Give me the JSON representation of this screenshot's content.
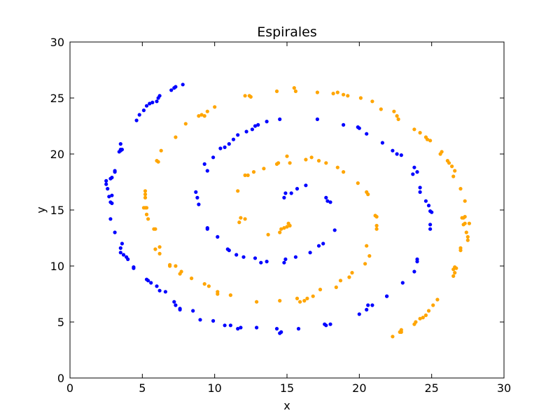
{
  "chart_data": {
    "type": "scatter",
    "title": "Espirales",
    "xlabel": "x",
    "ylabel": "y",
    "xlim": [
      0,
      30
    ],
    "ylim": [
      0,
      30
    ],
    "xticks": [
      0,
      5,
      10,
      15,
      20,
      25,
      30
    ],
    "yticks": [
      0,
      5,
      10,
      15,
      20,
      25,
      30
    ],
    "grid": false,
    "legend": "none",
    "series": [
      {
        "color": "#0000ff",
        "points": [
          [
            14.8,
            16.1
          ],
          [
            14.9,
            16.5
          ],
          [
            15.3,
            16.5
          ],
          [
            15.7,
            16.9
          ],
          [
            16.3,
            17.2
          ],
          [
            17.7,
            16.1
          ],
          [
            17.8,
            15.8
          ],
          [
            18.0,
            15.7
          ],
          [
            18.3,
            13.2
          ],
          [
            17.5,
            12.0
          ],
          [
            17.2,
            11.8
          ],
          [
            16.6,
            11.2
          ],
          [
            15.6,
            10.8
          ],
          [
            14.9,
            10.6
          ],
          [
            14.8,
            10.3
          ],
          [
            13.6,
            10.4
          ],
          [
            13.2,
            10.3
          ],
          [
            12.8,
            10.7
          ],
          [
            12.0,
            10.8
          ],
          [
            11.5,
            11.0
          ],
          [
            11.0,
            11.4
          ],
          [
            10.9,
            11.5
          ],
          [
            10.2,
            12.6
          ],
          [
            9.5,
            13.4
          ],
          [
            9.5,
            13.3
          ],
          [
            8.9,
            15.5
          ],
          [
            8.8,
            16.1
          ],
          [
            8.7,
            16.6
          ],
          [
            9.5,
            18.5
          ],
          [
            9.3,
            19.1
          ],
          [
            9.9,
            19.7
          ],
          [
            10.4,
            20.5
          ],
          [
            10.7,
            20.6
          ],
          [
            11.0,
            20.9
          ],
          [
            11.3,
            21.3
          ],
          [
            11.6,
            21.7
          ],
          [
            12.2,
            22.0
          ],
          [
            12.6,
            22.2
          ],
          [
            12.8,
            22.5
          ],
          [
            13.0,
            22.6
          ],
          [
            13.6,
            22.9
          ],
          [
            14.5,
            23.1
          ],
          [
            17.1,
            23.1
          ],
          [
            18.9,
            22.6
          ],
          [
            19.9,
            22.4
          ],
          [
            20.0,
            22.3
          ],
          [
            20.5,
            21.8
          ],
          [
            21.6,
            21.0
          ],
          [
            22.3,
            20.3
          ],
          [
            22.6,
            20.0
          ],
          [
            22.9,
            19.9
          ],
          [
            23.8,
            18.8
          ],
          [
            23.7,
            18.2
          ],
          [
            24.0,
            18.4
          ],
          [
            24.2,
            17.0
          ],
          [
            24.2,
            16.6
          ],
          [
            24.6,
            15.8
          ],
          [
            24.8,
            15.4
          ],
          [
            24.9,
            14.9
          ],
          [
            25.0,
            14.8
          ],
          [
            24.9,
            13.7
          ],
          [
            24.9,
            13.3
          ],
          [
            24.0,
            10.6
          ],
          [
            24.0,
            10.4
          ],
          [
            23.8,
            9.5
          ],
          [
            23.0,
            8.5
          ],
          [
            21.9,
            7.3
          ],
          [
            21.9,
            7.3
          ],
          [
            20.9,
            6.5
          ],
          [
            20.6,
            6.5
          ],
          [
            20.5,
            6.1
          ],
          [
            20.0,
            5.7
          ],
          [
            18.0,
            4.8
          ],
          [
            17.7,
            4.7
          ],
          [
            17.6,
            4.8
          ],
          [
            15.8,
            4.4
          ],
          [
            14.6,
            4.1
          ],
          [
            14.5,
            4.0
          ],
          [
            14.3,
            4.4
          ],
          [
            12.9,
            4.5
          ],
          [
            11.8,
            4.5
          ],
          [
            11.6,
            4.4
          ],
          [
            11.1,
            4.7
          ],
          [
            10.7,
            4.7
          ],
          [
            9.9,
            5.1
          ],
          [
            9.0,
            5.2
          ],
          [
            8.5,
            6.0
          ],
          [
            7.6,
            6.1
          ],
          [
            7.6,
            6.2
          ],
          [
            7.3,
            6.5
          ],
          [
            7.2,
            6.8
          ],
          [
            6.6,
            7.7
          ],
          [
            6.2,
            7.8
          ],
          [
            6.0,
            8.2
          ],
          [
            5.6,
            8.5
          ],
          [
            5.4,
            8.7
          ],
          [
            5.3,
            8.8
          ],
          [
            4.4,
            9.8
          ],
          [
            4.4,
            9.9
          ],
          [
            4.0,
            10.6
          ],
          [
            3.9,
            10.8
          ],
          [
            3.7,
            11.0
          ],
          [
            3.5,
            11.2
          ],
          [
            3.5,
            11.6
          ],
          [
            3.6,
            12.0
          ],
          [
            3.1,
            13.0
          ],
          [
            2.8,
            14.2
          ],
          [
            2.9,
            15.6
          ],
          [
            2.8,
            15.7
          ],
          [
            2.7,
            16.2
          ],
          [
            2.9,
            16.3
          ],
          [
            2.6,
            16.9
          ],
          [
            2.5,
            17.3
          ],
          [
            2.5,
            17.6
          ],
          [
            2.8,
            17.8
          ],
          [
            2.9,
            17.9
          ],
          [
            3.1,
            18.4
          ],
          [
            3.1,
            18.5
          ],
          [
            3.4,
            20.2
          ],
          [
            3.5,
            20.4
          ],
          [
            3.5,
            20.3
          ],
          [
            3.6,
            20.4
          ],
          [
            3.5,
            20.9
          ],
          [
            4.6,
            23.0
          ],
          [
            4.8,
            23.5
          ],
          [
            5.1,
            23.9
          ],
          [
            5.3,
            24.3
          ],
          [
            5.5,
            24.5
          ],
          [
            5.7,
            24.6
          ],
          [
            6.0,
            24.7
          ],
          [
            6.1,
            25.0
          ],
          [
            6.2,
            25.2
          ],
          [
            7.0,
            25.7
          ],
          [
            7.2,
            25.9
          ],
          [
            7.3,
            26.0
          ],
          [
            7.8,
            26.2
          ]
        ]
      },
      {
        "color": "#ffa500",
        "points": [
          [
            14.6,
            13.3
          ],
          [
            14.5,
            13.0
          ],
          [
            14.8,
            13.4
          ],
          [
            15.0,
            13.5
          ],
          [
            15.1,
            13.8
          ],
          [
            15.2,
            13.6
          ],
          [
            13.7,
            12.8
          ],
          [
            11.8,
            14.3
          ],
          [
            11.7,
            13.9
          ],
          [
            12.1,
            14.2
          ],
          [
            11.6,
            16.7
          ],
          [
            12.1,
            18.1
          ],
          [
            12.3,
            18.1
          ],
          [
            12.7,
            18.4
          ],
          [
            13.4,
            18.7
          ],
          [
            14.3,
            19.1
          ],
          [
            14.4,
            19.2
          ],
          [
            15.2,
            19.2
          ],
          [
            15.0,
            19.8
          ],
          [
            16.3,
            19.5
          ],
          [
            16.7,
            19.7
          ],
          [
            17.2,
            19.4
          ],
          [
            17.7,
            19.2
          ],
          [
            18.5,
            18.8
          ],
          [
            18.9,
            18.4
          ],
          [
            19.9,
            17.4
          ],
          [
            20.5,
            16.6
          ],
          [
            20.6,
            16.4
          ],
          [
            21.1,
            14.5
          ],
          [
            21.2,
            14.4
          ],
          [
            21.2,
            13.6
          ],
          [
            21.2,
            13.3
          ],
          [
            20.5,
            11.8
          ],
          [
            20.7,
            10.9
          ],
          [
            20.4,
            10.2
          ],
          [
            19.5,
            9.4
          ],
          [
            19.3,
            9.0
          ],
          [
            18.7,
            8.7
          ],
          [
            18.4,
            8.1
          ],
          [
            17.3,
            7.9
          ],
          [
            16.8,
            7.3
          ],
          [
            16.4,
            7.1
          ],
          [
            16.2,
            6.9
          ],
          [
            15.9,
            6.8
          ],
          [
            15.7,
            7.1
          ],
          [
            14.5,
            6.9
          ],
          [
            12.9,
            6.8
          ],
          [
            11.1,
            7.4
          ],
          [
            10.2,
            7.5
          ],
          [
            10.2,
            7.7
          ],
          [
            9.6,
            8.2
          ],
          [
            9.3,
            8.4
          ],
          [
            8.4,
            8.9
          ],
          [
            7.6,
            9.3
          ],
          [
            7.7,
            9.5
          ],
          [
            7.3,
            10.0
          ],
          [
            6.9,
            10.1
          ],
          [
            6.9,
            10.0
          ],
          [
            6.2,
            11.1
          ],
          [
            6.2,
            11.7
          ],
          [
            5.9,
            11.5
          ],
          [
            5.8,
            13.3
          ],
          [
            5.9,
            13.3
          ],
          [
            5.4,
            14.2
          ],
          [
            5.3,
            14.6
          ],
          [
            5.2,
            15.2
          ],
          [
            5.3,
            15.2
          ],
          [
            5.1,
            15.2
          ],
          [
            5.2,
            16.1
          ],
          [
            5.2,
            16.4
          ],
          [
            5.2,
            16.7
          ],
          [
            6.1,
            19.3
          ],
          [
            6.0,
            19.4
          ],
          [
            6.3,
            20.3
          ],
          [
            7.3,
            21.5
          ],
          [
            8.0,
            22.7
          ],
          [
            8.9,
            23.4
          ],
          [
            9.1,
            23.5
          ],
          [
            9.3,
            23.4
          ],
          [
            9.5,
            23.8
          ],
          [
            10.0,
            24.2
          ],
          [
            12.1,
            25.2
          ],
          [
            12.4,
            25.2
          ],
          [
            12.5,
            25.1
          ],
          [
            14.3,
            25.6
          ],
          [
            15.5,
            25.9
          ],
          [
            15.6,
            25.6
          ],
          [
            17.1,
            25.5
          ],
          [
            18.2,
            25.4
          ],
          [
            18.5,
            25.5
          ],
          [
            18.9,
            25.3
          ],
          [
            19.2,
            25.2
          ],
          [
            20.1,
            25.0
          ],
          [
            20.9,
            24.7
          ],
          [
            21.5,
            24.0
          ],
          [
            22.4,
            23.8
          ],
          [
            22.6,
            23.4
          ],
          [
            22.7,
            23.1
          ],
          [
            23.8,
            22.2
          ],
          [
            24.2,
            21.9
          ],
          [
            24.6,
            21.5
          ],
          [
            24.7,
            21.3
          ],
          [
            24.9,
            21.2
          ],
          [
            25.6,
            20.0
          ],
          [
            25.7,
            20.2
          ],
          [
            26.1,
            19.4
          ],
          [
            26.2,
            19.2
          ],
          [
            26.4,
            18.9
          ],
          [
            26.6,
            18.5
          ],
          [
            26.5,
            18.0
          ],
          [
            27.0,
            16.9
          ],
          [
            27.3,
            15.8
          ],
          [
            27.1,
            14.3
          ],
          [
            27.3,
            14.4
          ],
          [
            27.2,
            14.3
          ],
          [
            27.2,
            13.7
          ],
          [
            27.3,
            13.8
          ],
          [
            27.6,
            13.8
          ],
          [
            27.4,
            13.0
          ],
          [
            27.5,
            12.6
          ],
          [
            27.5,
            12.3
          ],
          [
            27.0,
            11.6
          ],
          [
            27.0,
            11.4
          ],
          [
            26.6,
            9.9
          ],
          [
            26.5,
            9.7
          ],
          [
            26.7,
            9.8
          ],
          [
            26.6,
            9.4
          ],
          [
            26.5,
            9.1
          ],
          [
            25.4,
            7.0
          ],
          [
            25.1,
            6.5
          ],
          [
            24.8,
            6.0
          ],
          [
            24.6,
            5.6
          ],
          [
            24.4,
            5.4
          ],
          [
            24.2,
            5.3
          ],
          [
            23.9,
            5.0
          ],
          [
            23.8,
            4.8
          ],
          [
            22.9,
            4.3
          ],
          [
            22.8,
            4.1
          ],
          [
            22.9,
            4.1
          ],
          [
            22.3,
            3.7
          ]
        ]
      }
    ]
  }
}
